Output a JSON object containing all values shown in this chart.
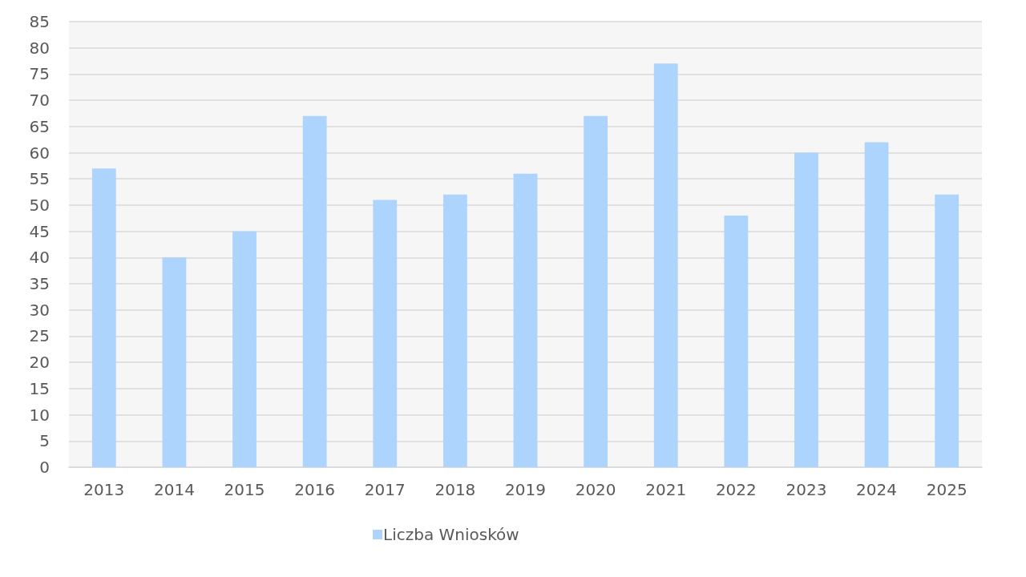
{
  "chart_data": {
    "type": "bar",
    "categories": [
      "2013",
      "2014",
      "2015",
      "2016",
      "2017",
      "2018",
      "2019",
      "2020",
      "2021",
      "2022",
      "2023",
      "2024",
      "2025"
    ],
    "series": [
      {
        "name": "Liczba Wniosków",
        "color": "#acd4fc",
        "values": [
          57,
          40,
          45,
          67,
          51,
          52,
          56,
          67,
          77,
          48,
          60,
          62,
          52
        ]
      }
    ],
    "ylim": [
      0,
      85
    ],
    "yticks": [
      0,
      5,
      10,
      15,
      20,
      25,
      30,
      35,
      40,
      45,
      50,
      55,
      60,
      65,
      70,
      75,
      80,
      85
    ],
    "grid": "y",
    "legend": "bottom"
  }
}
